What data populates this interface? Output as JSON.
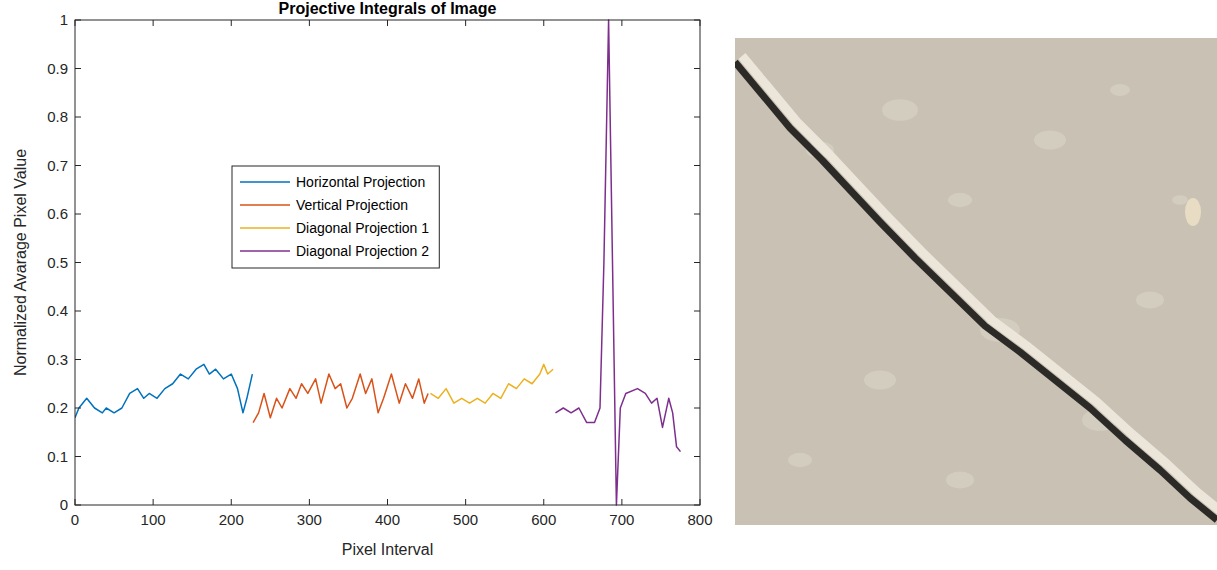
{
  "chart_data": {
    "type": "line",
    "title": "Projective Integrals of Image",
    "x_label": "Pixel Interval",
    "y_label": "Normalized Avarage Pixel Value",
    "xlim": [
      0,
      800
    ],
    "ylim": [
      0,
      1
    ],
    "xticks": [
      0,
      100,
      200,
      300,
      400,
      500,
      600,
      700,
      800
    ],
    "yticks": [
      0,
      0.1,
      0.2,
      0.3,
      0.4,
      0.5,
      0.6,
      0.7,
      0.8,
      0.9,
      1
    ],
    "grid": false,
    "legend": "center",
    "series": [
      {
        "name": "Horizontal Projection",
        "color": "#0072bd",
        "x": [
          0,
          5,
          15,
          25,
          35,
          40,
          50,
          60,
          70,
          80,
          88,
          95,
          105,
          115,
          125,
          135,
          145,
          155,
          165,
          172,
          180,
          190,
          200,
          208,
          215,
          220,
          227
        ],
        "values": [
          0.18,
          0.2,
          0.22,
          0.2,
          0.19,
          0.2,
          0.19,
          0.2,
          0.23,
          0.24,
          0.22,
          0.23,
          0.22,
          0.24,
          0.25,
          0.27,
          0.26,
          0.28,
          0.29,
          0.27,
          0.28,
          0.26,
          0.27,
          0.24,
          0.19,
          0.22,
          0.27
        ]
      },
      {
        "name": "Vertical Projection",
        "color": "#d95319",
        "x": [
          228,
          235,
          242,
          250,
          258,
          265,
          275,
          283,
          290,
          298,
          308,
          315,
          325,
          333,
          340,
          348,
          355,
          365,
          372,
          380,
          388,
          395,
          405,
          415,
          423,
          432,
          440,
          447,
          452
        ],
        "values": [
          0.17,
          0.19,
          0.23,
          0.18,
          0.22,
          0.2,
          0.24,
          0.22,
          0.25,
          0.23,
          0.26,
          0.21,
          0.27,
          0.24,
          0.25,
          0.2,
          0.22,
          0.27,
          0.23,
          0.26,
          0.19,
          0.22,
          0.27,
          0.21,
          0.25,
          0.22,
          0.26,
          0.21,
          0.23
        ]
      },
      {
        "name": "Diagonal Projection 1",
        "color": "#edb120",
        "x": [
          455,
          465,
          475,
          485,
          495,
          505,
          515,
          525,
          535,
          545,
          555,
          565,
          575,
          585,
          595,
          600,
          605,
          612
        ],
        "values": [
          0.23,
          0.22,
          0.24,
          0.21,
          0.22,
          0.21,
          0.22,
          0.21,
          0.23,
          0.22,
          0.25,
          0.24,
          0.26,
          0.25,
          0.27,
          0.29,
          0.27,
          0.28
        ]
      },
      {
        "name": "Diagonal Projection 2",
        "color": "#7e2f8e",
        "x": [
          615,
          625,
          635,
          645,
          655,
          665,
          672,
          677,
          683,
          688,
          693,
          698,
          705,
          720,
          730,
          738,
          745,
          752,
          760,
          765,
          770,
          775
        ],
        "values": [
          0.19,
          0.2,
          0.19,
          0.2,
          0.17,
          0.17,
          0.2,
          0.5,
          1.0,
          0.5,
          0.0,
          0.2,
          0.23,
          0.24,
          0.23,
          0.21,
          0.22,
          0.16,
          0.22,
          0.19,
          0.12,
          0.11
        ]
      }
    ]
  }
}
